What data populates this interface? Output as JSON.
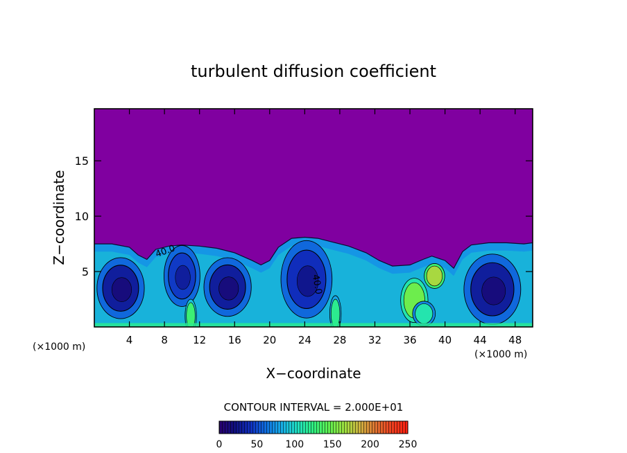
{
  "chart_data": {
    "type": "heatmap",
    "title": "turbulent diffusion coefficient",
    "xlabel": "X−coordinate",
    "ylabel": "Z−coordinate",
    "x_unit_left": "(×1000 m)",
    "x_unit_right": "(×1000 m)",
    "xlim": [
      0,
      50
    ],
    "ylim": [
      0,
      19.7
    ],
    "x_ticks": [
      4,
      8,
      12,
      16,
      20,
      24,
      28,
      32,
      36,
      40,
      44,
      48
    ],
    "y_ticks": [
      5,
      10,
      15
    ],
    "contour_interval_label": "CONTOUR INTERVAL = 2.000E+01",
    "contour_labels": [
      {
        "text": "40.0",
        "x": 8.2,
        "y": 6.6,
        "angle": -20
      },
      {
        "text": "40.0",
        "x": 25.1,
        "y": 3.8,
        "angle": 80
      }
    ],
    "colorbar": {
      "min": 0,
      "max": 250,
      "ticks": [
        0,
        50,
        100,
        150,
        200,
        250
      ],
      "stops": [
        "#2a0070",
        "#101080",
        "#1030c0",
        "#1070e0",
        "#18b0e8",
        "#20e0c0",
        "#30f080",
        "#60f050",
        "#a0e040",
        "#d0b040",
        "#e07030",
        "#f04020",
        "#ff2010"
      ]
    },
    "background_color": "#8000a0",
    "fields": {
      "low_value_color": "#8000a0",
      "boundary_layer_top_profile": [
        [
          0,
          7.5
        ],
        [
          2,
          7.5
        ],
        [
          4,
          7.2
        ],
        [
          5,
          6.5
        ],
        [
          6,
          6.1
        ],
        [
          7,
          7.0
        ],
        [
          8.5,
          7.3
        ],
        [
          10,
          7.4
        ],
        [
          12,
          7.3
        ],
        [
          14,
          7.1
        ],
        [
          16,
          6.7
        ],
        [
          18,
          6.0
        ],
        [
          19,
          5.6
        ],
        [
          20,
          6.0
        ],
        [
          21,
          7.2
        ],
        [
          22.5,
          8.0
        ],
        [
          24,
          8.1
        ],
        [
          25.5,
          8.0
        ],
        [
          27,
          7.7
        ],
        [
          29,
          7.3
        ],
        [
          31,
          6.7
        ],
        [
          32.5,
          6.0
        ],
        [
          34,
          5.5
        ],
        [
          36,
          5.6
        ],
        [
          37.5,
          6.1
        ],
        [
          38.5,
          6.4
        ],
        [
          40,
          6.0
        ],
        [
          41,
          5.3
        ],
        [
          42,
          6.8
        ],
        [
          43,
          7.4
        ],
        [
          45,
          7.6
        ],
        [
          47,
          7.6
        ],
        [
          49,
          7.5
        ],
        [
          50,
          7.6
        ]
      ],
      "eddies": [
        {
          "cx": 3.0,
          "cz": 3.5,
          "rx": 2.5,
          "rz": 2.6,
          "peak": 30
        },
        {
          "cx": 10.0,
          "cz": 4.6,
          "rx": 1.9,
          "rz": 2.6,
          "peak": 45
        },
        {
          "cx": 15.2,
          "cz": 3.6,
          "rx": 2.5,
          "rz": 2.5,
          "peak": 30
        },
        {
          "cx": 24.2,
          "cz": 4.3,
          "rx": 2.7,
          "rz": 3.3,
          "peak": 40
        },
        {
          "cx": 45.4,
          "cz": 3.4,
          "rx": 3.0,
          "rz": 3.0,
          "peak": 30
        }
      ],
      "hot_spots": [
        {
          "cx": 11.0,
          "cz": 1.0,
          "rx": 0.5,
          "rz": 1.2,
          "value": 130
        },
        {
          "cx": 27.5,
          "cz": 1.2,
          "rx": 0.5,
          "rz": 1.3,
          "value": 120
        },
        {
          "cx": 36.5,
          "cz": 2.4,
          "rx": 1.2,
          "rz": 1.6,
          "value": 150
        },
        {
          "cx": 38.8,
          "cz": 4.6,
          "rx": 0.9,
          "rz": 0.9,
          "value": 170
        },
        {
          "cx": 37.6,
          "cz": 1.2,
          "rx": 1.0,
          "rz": 0.9,
          "value": 110
        }
      ]
    }
  }
}
